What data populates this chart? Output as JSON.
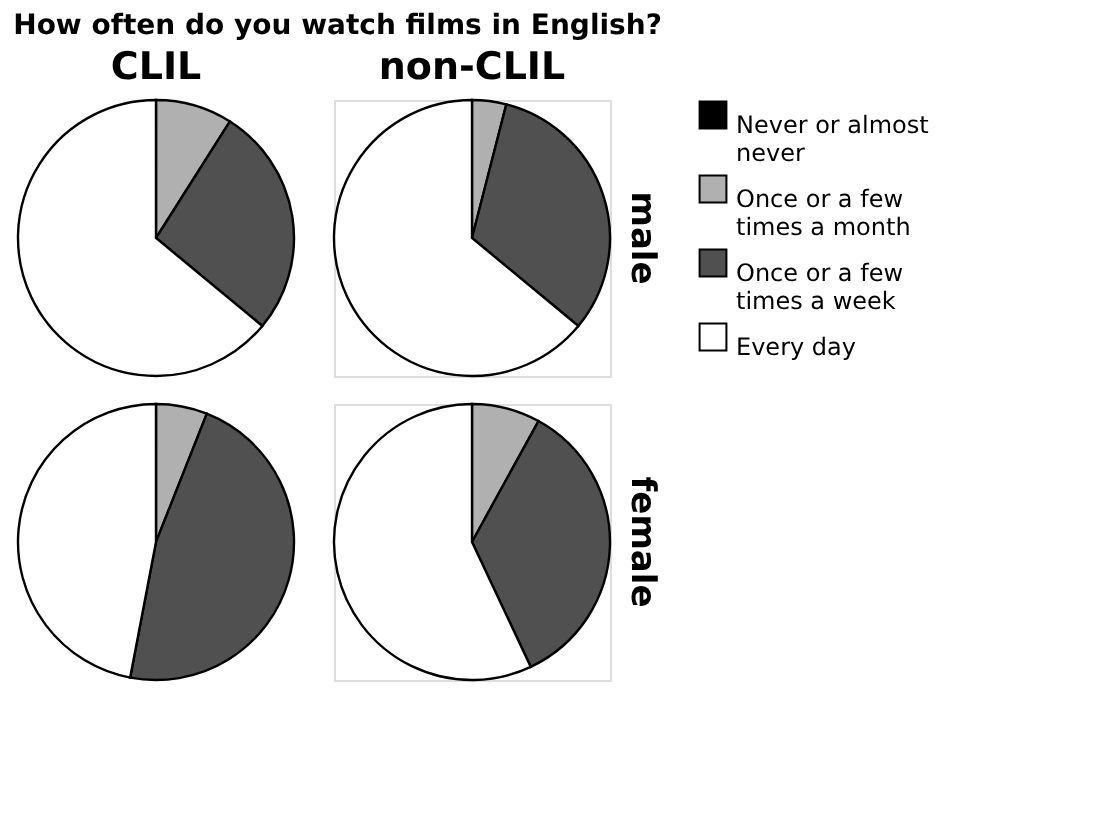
{
  "chart_data": [
    {
      "type": "pie",
      "title": "How often do you watch films in English?",
      "subtitle": "CLIL",
      "categories": [
        "Never or almost never",
        "Once or a few times a month",
        "Once or a few times a week",
        "Every day"
      ],
      "values": [
        0,
        9,
        27,
        64
      ],
      "colors": [
        "#000000",
        "#b0b0b0",
        "#505050",
        "#ffffff"
      ],
      "legend": "right"
    },
    {
      "type": "pie",
      "subtitle": "non-CLIL",
      "ylabel": "male",
      "values": [
        0,
        4,
        32,
        64
      ],
      "colors": [
        "#000000",
        "#b0b0b0",
        "#505050",
        "#ffffff"
      ]
    },
    {
      "type": "pie",
      "values": [
        0,
        6,
        47,
        47
      ],
      "colors": [
        "#000000",
        "#b0b0b0",
        "#505050",
        "#ffffff"
      ]
    },
    {
      "type": "pie",
      "ylabel": "female",
      "values": [
        0,
        8,
        35,
        57
      ],
      "colors": [
        "#000000",
        "#b0b0b0",
        "#505050",
        "#ffffff"
      ]
    }
  ]
}
